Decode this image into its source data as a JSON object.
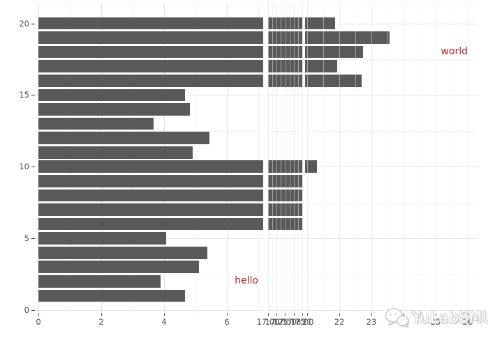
{
  "chart_data": {
    "type": "bar",
    "orientation": "horizontal",
    "title": "",
    "xlabel": "",
    "ylabel": "",
    "y": [
      1,
      2,
      3,
      4,
      5,
      6,
      7,
      8,
      9,
      10,
      11,
      12,
      13,
      14,
      15,
      16,
      17,
      18,
      19,
      20
    ],
    "values": [
      4.67,
      3.89,
      5.11,
      5.37,
      4.07,
      20.6,
      19.7,
      20.8,
      19.9,
      21.3,
      4.91,
      5.44,
      3.67,
      4.82,
      4.67,
      22.7,
      21.93,
      22.74,
      23.56,
      21.87
    ],
    "axis_breaks": [
      [
        7,
        17
      ],
      [
        18,
        21
      ]
    ],
    "x_segments": [
      {
        "major_ticks": [
          0,
          2,
          4,
          6
        ],
        "tick_labels": [
          "0",
          "2",
          "4",
          "6"
        ],
        "minor_ticks": [
          1,
          3,
          5,
          7
        ]
      },
      {
        "major_ticks": [
          17,
          17.25,
          17.5,
          17.75,
          18
        ],
        "tick_labels": [
          "17.00",
          "17.25",
          "17.50",
          "17.75",
          "18.00"
        ],
        "minor_ticks": [
          17.125,
          17.375,
          17.625,
          17.875
        ]
      },
      {
        "major_ticks": [
          21,
          22,
          23,
          24,
          25,
          26
        ],
        "tick_labels": [
          "21",
          "22",
          "23",
          "24",
          "25",
          "26"
        ],
        "minor_ticks": [
          21.5,
          22.5,
          23.5,
          24.5,
          25.5
        ]
      }
    ],
    "y_axis": {
      "major_ticks": [
        0,
        5,
        10,
        15,
        20
      ],
      "tick_labels": [
        "0",
        "5",
        "10",
        "15",
        "20"
      ],
      "minor_ticks": [
        2.5,
        7.5,
        12.5,
        17.5,
        21.4
      ]
    },
    "annotations": [
      {
        "label": "hello",
        "x": 7,
        "y": 2,
        "align": "right"
      },
      {
        "label": "world",
        "x": 26,
        "y": 18,
        "align": "right"
      }
    ],
    "colors": {
      "bar": "#595959",
      "grid_major": "#E3E3E3",
      "grid_minor": "#F1F1F1",
      "axis_text": "#4D4D4D",
      "tick_mark": "#333333",
      "annotation": "#B22222",
      "background": "#FFFFFF"
    },
    "legend": null,
    "grid": true
  },
  "watermark": {
    "text": "YuLabSMU"
  }
}
